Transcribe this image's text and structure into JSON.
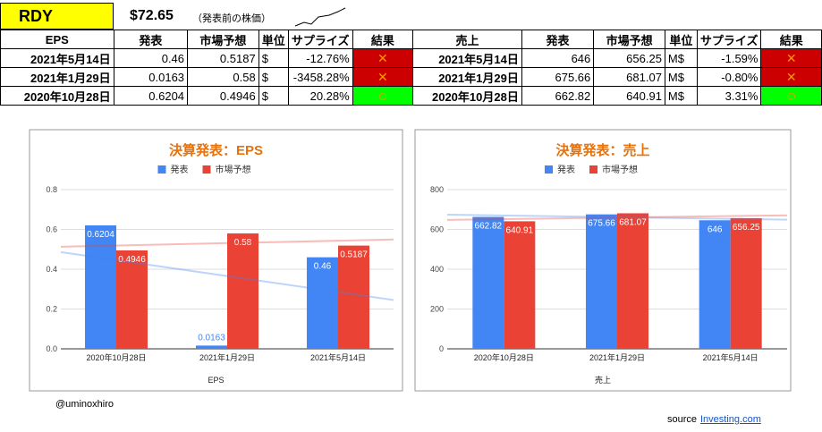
{
  "header": {
    "ticker": "RDY",
    "price": "$72.65",
    "note": "（発表前の株価）"
  },
  "table": {
    "header": [
      "EPS",
      "発表",
      "市場予想",
      "単位",
      "サプライズ",
      "結果",
      "売上",
      "発表",
      "市場予想",
      "単位",
      "サプライズ",
      "結果"
    ],
    "rows": [
      [
        "2021年5月14日",
        "0.46",
        "0.5187",
        "$",
        "-12.76%",
        "✕",
        "2021年5月14日",
        "646",
        "656.25",
        "M$",
        "-1.59%",
        "✕"
      ],
      [
        "2021年1月29日",
        "0.0163",
        "0.58",
        "$",
        "-3458.28%",
        "✕",
        "2021年1月29日",
        "675.66",
        "681.07",
        "M$",
        "-0.80%",
        "✕"
      ],
      [
        "2020年10月28日",
        "0.6204",
        "0.4946",
        "$",
        "20.28%",
        "☺",
        "2020年10月28日",
        "662.82",
        "640.91",
        "M$",
        "3.31%",
        "☺"
      ]
    ],
    "result_colors": [
      "#cc0000",
      "#cc0000",
      "#00ff00"
    ]
  },
  "chart_data": [
    {
      "type": "bar",
      "title": "決算発表：EPS",
      "x_label": "EPS",
      "categories": [
        "2020年10月28日",
        "2021年1月29日",
        "2021年5月14日"
      ],
      "series": [
        {
          "name": "発表",
          "color": "#4285f4",
          "values": [
            0.6204,
            0.0163,
            0.46
          ]
        },
        {
          "name": "市場予想",
          "color": "#ea4335",
          "values": [
            0.4946,
            0.58,
            0.5187
          ]
        }
      ],
      "ylim": [
        0,
        0.8
      ],
      "yticks": [
        {
          "value": 0,
          "label": "0.0"
        },
        0.2,
        0.4,
        0.6,
        0.8
      ],
      "grid": true,
      "trendline": true
    },
    {
      "type": "bar",
      "title": "決算発表：売上",
      "x_label": "売上",
      "categories": [
        "2020年10月28日",
        "2021年1月29日",
        "2021年5月14日"
      ],
      "series": [
        {
          "name": "発表",
          "color": "#4285f4",
          "values": [
            662.82,
            675.66,
            646
          ]
        },
        {
          "name": "市場予想",
          "color": "#ea4335",
          "values": [
            640.91,
            681.07,
            656.25
          ]
        }
      ],
      "ylim": [
        0,
        800
      ],
      "yticks": [
        0,
        200,
        400,
        600,
        800
      ],
      "grid": true,
      "trendline": true
    }
  ],
  "footer": {
    "author": "@uminoxhiro",
    "source": "source",
    "link": "Investing.com"
  }
}
